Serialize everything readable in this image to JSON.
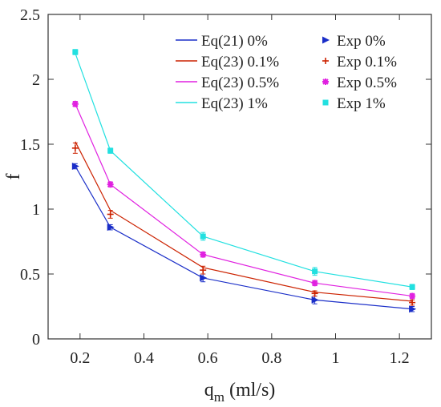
{
  "chart_data": {
    "type": "line",
    "xlabel": "q",
    "xlabel_sub": "m",
    "xlabel_unit": " (ml/s)",
    "ylabel": "f",
    "xlim": [
      0.1,
      1.3
    ],
    "ylim": [
      0,
      2.5
    ],
    "xticks": [
      "0.2",
      "0.4",
      "0.6",
      "0.8",
      "1",
      "1.2"
    ],
    "yticks": [
      "0",
      "0.5",
      "1",
      "1.5",
      "2",
      "2.5"
    ],
    "grid": false,
    "legend_position": "top-right",
    "x": [
      0.185,
      0.295,
      0.585,
      0.935,
      1.24
    ],
    "series": [
      {
        "color": "#1a2ec8",
        "line_label": "Eq(21)  0%",
        "exp_label": "Exp  0%",
        "marker": "triangle-right",
        "model": [
          1.33,
          0.86,
          0.47,
          0.3,
          0.23
        ],
        "exp": [
          1.33,
          0.86,
          0.47,
          0.3,
          0.23
        ],
        "err": [
          0.02,
          0.02,
          0.03,
          0.03,
          0.02
        ]
      },
      {
        "color": "#cc2200",
        "line_label": "Eq(23) 0.1%",
        "exp_label": "Exp  0.1%",
        "marker": "plus",
        "model": [
          1.52,
          0.99,
          0.55,
          0.36,
          0.29
        ],
        "exp": [
          1.47,
          0.96,
          0.53,
          0.35,
          0.28
        ],
        "err": [
          0.04,
          0.03,
          0.03,
          0.02,
          0.02
        ]
      },
      {
        "color": "#e020e0",
        "line_label": "Eq(23) 0.5%",
        "exp_label": "Exp  0.5%",
        "marker": "star",
        "model": [
          1.81,
          1.19,
          0.65,
          0.43,
          0.33
        ],
        "exp": [
          1.81,
          1.19,
          0.65,
          0.43,
          0.33
        ],
        "err": [
          0.02,
          0.02,
          0.02,
          0.02,
          0.02
        ]
      },
      {
        "color": "#22e0e0",
        "line_label": "Eq(23)  1%",
        "exp_label": "Exp  1%",
        "marker": "square",
        "model": [
          2.2,
          1.45,
          0.79,
          0.52,
          0.4
        ],
        "exp": [
          2.21,
          1.45,
          0.79,
          0.52,
          0.4
        ],
        "err": [
          0.02,
          0.02,
          0.03,
          0.03,
          0.02
        ]
      }
    ]
  }
}
